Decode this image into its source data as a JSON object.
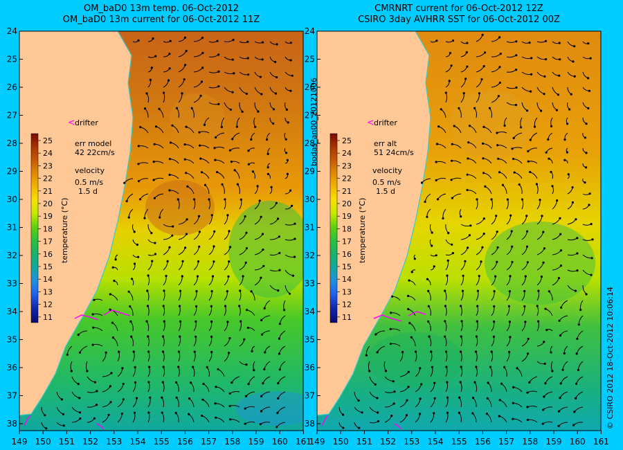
{
  "titles": {
    "left_line1": "OM_baD0 13m temp. 06-Oct-2012",
    "left_line2": "OM_baD0 13m current for 06-Oct-2012 11Z",
    "right_line1": "CMRNRT current for 06-Oct-2012 12Z",
    "right_line2": "CSIRO 3day AVHRR SST for 06-Oct-2012 00Z"
  },
  "side_label": "bodas_an00_20121006",
  "copyright": "© CSIRO 2012   18-Oct-2012 10:06:14",
  "axes": {
    "lat_ticks": [
      "24",
      "25",
      "26",
      "27",
      "28",
      "29",
      "30",
      "31",
      "32",
      "33",
      "34",
      "35",
      "36",
      "37",
      "38"
    ],
    "left_lon_ticks": [
      "149",
      "150",
      "151",
      "152",
      "153",
      "154",
      "155",
      "156",
      "157",
      "158",
      "159",
      "160",
      "161"
    ],
    "right_lon_ticks": [
      "149",
      "150",
      "151",
      "152",
      "153",
      "154",
      "155",
      "156",
      "157",
      "158",
      "159",
      "160",
      "161"
    ]
  },
  "left_panel": {
    "drifter_label": "drifter",
    "err_line1": "err model",
    "err_line2": "42 22cm/s",
    "velocity_title": "velocity",
    "velocity_speed": "0.5 m/s",
    "velocity_time": "1.5 d",
    "colorbar_title": "temperature (°C)",
    "colorbar_ticks": [
      "25",
      "24",
      "23",
      "22",
      "21",
      "20",
      "19",
      "18",
      "17",
      "16",
      "15",
      "14",
      "13",
      "12",
      "11"
    ]
  },
  "right_panel": {
    "drifter_label": "drifter",
    "err_line1": "err alt",
    "err_line2": "51 24cm/s",
    "velocity_title": "velocity",
    "velocity_speed": "0.5 m/s",
    "velocity_time": "1.5 d",
    "colorbar_title": "temperature (°C)",
    "colorbar_ticks": [
      "25",
      "24",
      "23",
      "22",
      "21",
      "20",
      "19",
      "18",
      "17",
      "16",
      "15",
      "14",
      "13",
      "12",
      "11"
    ]
  },
  "colors": {
    "background": "#00ccff",
    "land": "#ffc896",
    "coastline": "#33cccc",
    "drifter": "#ff00ff",
    "colorbar": [
      "#7a0a00",
      "#a83400",
      "#c85a00",
      "#e28a00",
      "#f2b400",
      "#f6e000",
      "#c8ea00",
      "#58d010",
      "#28c040",
      "#18b070",
      "#10a8a0",
      "#2090e0",
      "#2060f0",
      "#1028b0",
      "#0a0a70"
    ]
  }
}
